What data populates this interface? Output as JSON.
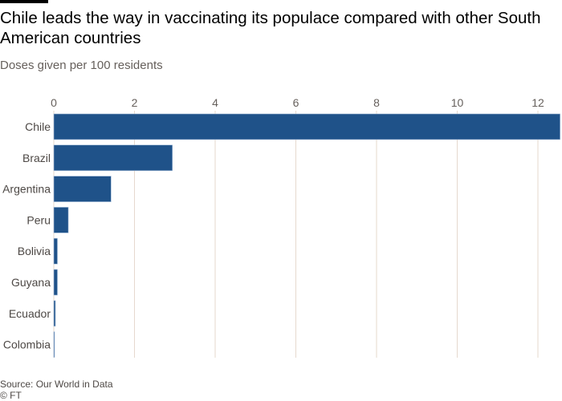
{
  "title": "Chile leads the way in vaccinating its populace compared with other South American countries",
  "subtitle": "Doses given per 100 residents",
  "source": "Source: Our World in Data",
  "copyright": "© FT",
  "colors": {
    "bar": "#1f5289",
    "grid": "#e6d9ce",
    "axis_text": "#66605c"
  },
  "chart_data": {
    "type": "bar",
    "orientation": "horizontal",
    "categories": [
      "Chile",
      "Brazil",
      "Argentina",
      "Peru",
      "Bolivia",
      "Guyana",
      "Ecuador",
      "Colombia"
    ],
    "values": [
      12.55,
      2.94,
      1.42,
      0.36,
      0.09,
      0.09,
      0.04,
      0.01
    ],
    "xlabel": "",
    "ylabel": "",
    "xlim": [
      0,
      12.6
    ],
    "xticks": [
      0,
      2,
      4,
      6,
      8,
      10,
      12
    ],
    "grid": true,
    "axis_position": "top"
  }
}
